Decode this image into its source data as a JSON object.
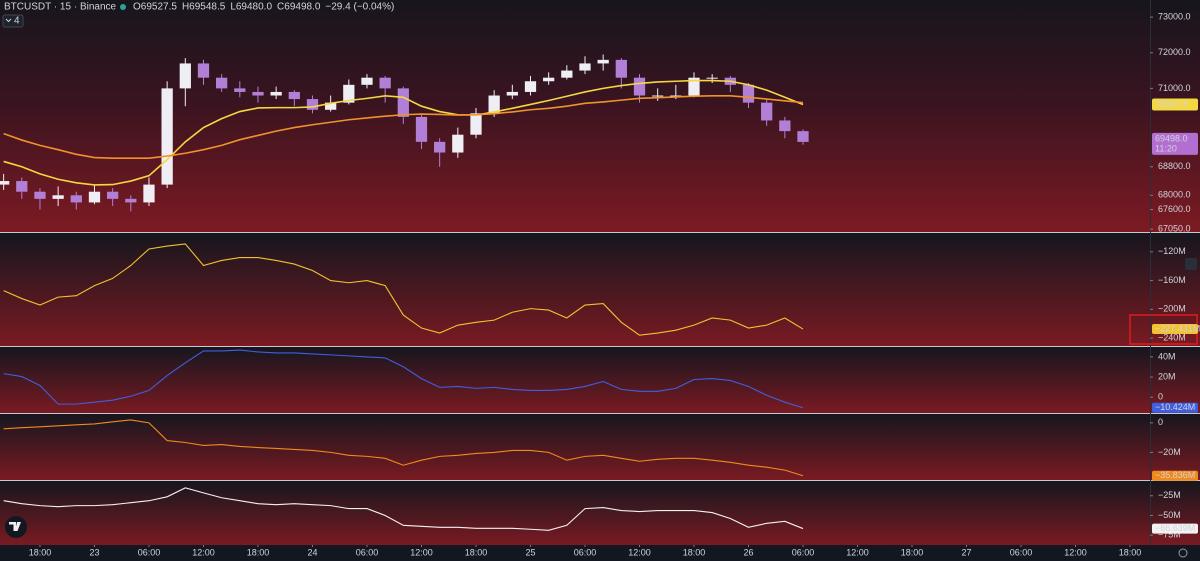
{
  "header": {
    "symbol": "BTCUSDT · 15 · Binance",
    "ohlc": [
      "O69527.5",
      "H69548.5",
      "L69480.0",
      "C69498.0",
      "−29.4 (−0.04%)"
    ],
    "indicator_count": "4"
  },
  "chart_data": [
    {
      "type": "candlestick",
      "x": [
        -4,
        -2,
        0,
        2,
        4,
        6,
        8,
        10,
        12,
        14,
        16,
        18,
        20,
        22,
        24,
        26,
        28,
        30,
        32,
        34,
        36,
        38,
        40,
        42,
        44,
        46,
        48,
        50,
        52,
        54,
        56,
        58,
        60,
        62,
        64,
        66,
        68,
        70,
        72,
        74,
        76,
        78,
        80,
        82,
        84
      ],
      "xlim": [
        -4.4,
        122.2
      ],
      "open": [
        68300,
        68400,
        68100,
        67900,
        68000,
        67800,
        68100,
        67900,
        67800,
        68300,
        71000,
        71700,
        71300,
        71000,
        70900,
        70800,
        70900,
        70700,
        70400,
        70600,
        71100,
        71300,
        71000,
        70200,
        69500,
        69200,
        69700,
        70300,
        70800,
        70900,
        71200,
        71300,
        71500,
        71700,
        71800,
        71300,
        70800,
        70800,
        70800,
        71300,
        71300,
        71100,
        70600,
        70100,
        69800
      ],
      "high": [
        68600,
        68500,
        68200,
        68250,
        68100,
        68300,
        68200,
        68000,
        68500,
        71200,
        71850,
        71800,
        71400,
        71200,
        71050,
        71050,
        70950,
        70800,
        70800,
        71250,
        71400,
        71350,
        71050,
        70300,
        69600,
        69900,
        70450,
        70950,
        71100,
        71350,
        71450,
        71650,
        71900,
        71950,
        71850,
        71400,
        71000,
        71100,
        71450,
        71400,
        71350,
        71150,
        70700,
        70200,
        69850
      ],
      "low": [
        68150,
        67900,
        67600,
        67700,
        67600,
        67750,
        67700,
        67550,
        67700,
        68200,
        70500,
        71100,
        70900,
        70750,
        70600,
        70700,
        70500,
        70300,
        70350,
        70550,
        71000,
        70600,
        70000,
        69300,
        68800,
        69050,
        69600,
        70200,
        70700,
        70800,
        71100,
        71250,
        71400,
        71500,
        71000,
        70600,
        70650,
        70700,
        70750,
        71150,
        70900,
        70450,
        69950,
        69600,
        69420
      ],
      "close": [
        68400,
        68100,
        67900,
        68000,
        67800,
        68100,
        67900,
        67800,
        68300,
        71000,
        71700,
        71300,
        71000,
        70900,
        70800,
        70900,
        70700,
        70400,
        70600,
        71100,
        71300,
        71000,
        70200,
        69500,
        69200,
        69700,
        70300,
        70800,
        70900,
        71200,
        71300,
        71500,
        71700,
        71800,
        71300,
        70800,
        70800,
        70800,
        71300,
        71300,
        71100,
        70600,
        70100,
        69800,
        69498
      ],
      "up_color": "#f0eef5",
      "down_color": "#b27fd6",
      "series": [
        {
          "color": "#f5d742",
          "show_last": true,
          "values": [
            68950,
            68800,
            68600,
            68450,
            68350,
            68290,
            68300,
            68400,
            68550,
            69000,
            69500,
            69900,
            70150,
            70350,
            70450,
            70460,
            70460,
            70480,
            70580,
            70660,
            70720,
            70790,
            70750,
            70500,
            70350,
            70260,
            70250,
            70340,
            70440,
            70550,
            70660,
            70780,
            70900,
            71000,
            71080,
            71140,
            71180,
            71200,
            71220,
            71220,
            71200,
            71100,
            70950,
            70750,
            70547.4
          ]
        },
        {
          "color": "#f0922b",
          "values": [
            69730,
            69550,
            69400,
            69280,
            69150,
            69060,
            69040,
            69040,
            69040,
            69100,
            69180,
            69280,
            69400,
            69560,
            69680,
            69800,
            69900,
            69980,
            70050,
            70120,
            70170,
            70220,
            70260,
            70280,
            70270,
            70250,
            70260,
            70290,
            70340,
            70400,
            70440,
            70500,
            70580,
            70620,
            70670,
            70720,
            70740,
            70760,
            70780,
            70790,
            70790,
            70750,
            70700,
            70650,
            70600
          ]
        }
      ],
      "last_price": {
        "value": 69498.0,
        "label": "69498.0"
      },
      "last_price_color": "#b26ed0",
      "countdown": "11:20",
      "ylim": [
        66970,
        73480
      ],
      "yticks": [
        {
          "value": 73000,
          "label": "73000.0"
        },
        {
          "value": 72000,
          "label": "72000.0"
        },
        {
          "value": 71000,
          "label": "71000.0"
        },
        {
          "value": 68800,
          "label": "68800.0"
        },
        {
          "value": 68000,
          "label": "68000.0"
        },
        {
          "value": 67600,
          "label": "67600.0"
        },
        {
          "value": 67050,
          "label": "67050.0"
        }
      ]
    },
    {
      "type": "line",
      "x": [
        -4,
        -2,
        0,
        2,
        4,
        6,
        8,
        10,
        12,
        14,
        16,
        18,
        20,
        22,
        24,
        26,
        28,
        30,
        32,
        34,
        36,
        38,
        40,
        42,
        44,
        46,
        48,
        50,
        52,
        54,
        56,
        58,
        60,
        62,
        64,
        66,
        68,
        70,
        72,
        74,
        76,
        78,
        80,
        82,
        84
      ],
      "xlim": [
        -4.4,
        122.2
      ],
      "color": "#f2c230",
      "values": [
        -174000000,
        -185000000,
        -194000000,
        -183000000,
        -181000000,
        -167000000,
        -157000000,
        -139000000,
        -116000000,
        -112000000,
        -109000000,
        -139000000,
        -132000000,
        -128000000,
        -128000000,
        -132000000,
        -137000000,
        -146000000,
        -160000000,
        -163000000,
        -160000000,
        -167000000,
        -208000000,
        -226000000,
        -233000000,
        -222000000,
        -218000000,
        -215000000,
        -204000000,
        -199000000,
        -201000000,
        -212000000,
        -194000000,
        -192000000,
        -218000000,
        -236000000,
        -233000000,
        -229000000,
        -222000000,
        -212000000,
        -215000000,
        -226000000,
        -222000000,
        -212000000,
        -227431000
      ],
      "last_value_label": "−227.431M",
      "ylim": [
        -251000000,
        -93800000
      ],
      "yticks": [
        {
          "value": -120000000,
          "label": "−120M"
        },
        {
          "value": -160000000,
          "label": "−160M"
        },
        {
          "value": -200000000,
          "label": "−200M"
        },
        {
          "value": -240000000,
          "label": "−240M"
        }
      ]
    },
    {
      "type": "line",
      "x": [
        -4,
        -2,
        0,
        2,
        4,
        6,
        8,
        10,
        12,
        14,
        16,
        18,
        20,
        22,
        24,
        26,
        28,
        30,
        32,
        34,
        36,
        38,
        40,
        42,
        44,
        46,
        48,
        50,
        52,
        54,
        56,
        58,
        60,
        62,
        64,
        66,
        68,
        70,
        72,
        74,
        76,
        78,
        80,
        82,
        84
      ],
      "xlim": [
        -4.4,
        122.2
      ],
      "color": "#3f5fe0",
      "values": [
        23400000,
        20500000,
        11700000,
        -6800000,
        -6800000,
        -4900000,
        -2900000,
        1000000,
        6800000,
        21500000,
        34100000,
        45900000,
        45900000,
        46800000,
        44900000,
        43900000,
        43900000,
        42900000,
        42000000,
        41000000,
        40000000,
        39000000,
        30200000,
        18500000,
        9800000,
        10700000,
        8800000,
        9800000,
        7800000,
        6800000,
        6800000,
        7800000,
        10700000,
        15600000,
        7800000,
        5900000,
        5900000,
        8800000,
        17600000,
        18500000,
        16600000,
        10700000,
        2000000,
        -4900000,
        -10424000
      ],
      "last_value_label": "−10.424M",
      "ylim": [
        -15600000,
        49800000
      ],
      "yticks": [
        {
          "value": 40000000,
          "label": "40M"
        },
        {
          "value": 20000000,
          "label": "20M"
        },
        0
      ]
    },
    {
      "type": "line",
      "x": [
        -4,
        -2,
        0,
        2,
        4,
        6,
        8,
        10,
        12,
        14,
        16,
        18,
        20,
        22,
        24,
        26,
        28,
        30,
        32,
        34,
        36,
        38,
        40,
        42,
        44,
        46,
        48,
        50,
        52,
        54,
        56,
        58,
        60,
        62,
        64,
        66,
        68,
        70,
        72,
        74,
        76,
        78,
        80,
        82,
        84
      ],
      "xlim": [
        -4.4,
        122.2
      ],
      "color": "#f08a1c",
      "values": [
        -4000000,
        -3300000,
        -2700000,
        -2000000,
        -1300000,
        -700000,
        700000,
        2000000,
        0,
        -12000000,
        -13300000,
        -15300000,
        -14700000,
        -16000000,
        -16700000,
        -17300000,
        -18000000,
        -18700000,
        -20000000,
        -22000000,
        -22700000,
        -24000000,
        -28700000,
        -25300000,
        -22700000,
        -22000000,
        -20700000,
        -20000000,
        -18700000,
        -18700000,
        -20000000,
        -25300000,
        -22700000,
        -22000000,
        -24000000,
        -26000000,
        -24700000,
        -24000000,
        -24000000,
        -25300000,
        -26700000,
        -28700000,
        -30000000,
        -32000000,
        -35836000
      ],
      "last_value_label": "−35.836M",
      "ylim": [
        -38700000,
        6000000
      ],
      "yticks": [
        0,
        {
          "value": -20000000,
          "label": "−20M"
        }
      ]
    },
    {
      "type": "line",
      "x": [
        -4,
        -2,
        0,
        2,
        4,
        6,
        8,
        10,
        12,
        14,
        16,
        18,
        20,
        22,
        24,
        26,
        28,
        30,
        32,
        34,
        36,
        38,
        40,
        42,
        44,
        46,
        48,
        50,
        52,
        54,
        56,
        58,
        60,
        62,
        64,
        66,
        68,
        70,
        72,
        74,
        76,
        78,
        80,
        82,
        84
      ],
      "xlim": [
        -4.4,
        122.2
      ],
      "color": "#f2f2f2",
      "values": [
        -31300000,
        -35000000,
        -37500000,
        -38800000,
        -37500000,
        -37500000,
        -36300000,
        -33800000,
        -31300000,
        -26300000,
        -15000000,
        -21300000,
        -27500000,
        -31300000,
        -35000000,
        -36300000,
        -35000000,
        -36300000,
        -37500000,
        -41300000,
        -41300000,
        -50000000,
        -62500000,
        -63800000,
        -65000000,
        -65000000,
        -66300000,
        -66300000,
        -66300000,
        -67500000,
        -68800000,
        -62500000,
        -41300000,
        -40000000,
        -43800000,
        -45000000,
        -43800000,
        -43800000,
        -43800000,
        -46300000,
        -53800000,
        -65000000,
        -60000000,
        -57500000,
        -66639000
      ],
      "last_value_label": "−66.639M",
      "ylim": [
        -87500000,
        -6250000
      ],
      "yticks": [
        {
          "value": -25000000,
          "label": "−25M"
        },
        {
          "value": -50000000,
          "label": "−50M"
        },
        {
          "value": -75000000,
          "label": "−75M"
        }
      ],
      "xticks": [
        {
          "value": 0,
          "label": "18:00"
        },
        {
          "value": 6,
          "label": "23"
        },
        {
          "value": 12,
          "label": "06:00"
        },
        {
          "value": 18,
          "label": "12:00"
        },
        {
          "value": 24,
          "label": "18:00"
        },
        {
          "value": 30,
          "label": "24"
        },
        {
          "value": 36,
          "label": "06:00"
        },
        {
          "value": 42,
          "label": "12:00"
        },
        {
          "value": 48,
          "label": "18:00"
        },
        {
          "value": 54,
          "label": "25"
        },
        {
          "value": 60,
          "label": "06:00"
        },
        {
          "value": 66,
          "label": "12:00"
        },
        {
          "value": 72,
          "label": "18:00"
        },
        {
          "value": 78,
          "label": "26"
        },
        {
          "value": 84,
          "label": "06:00"
        },
        {
          "value": 90,
          "label": "12:00"
        },
        {
          "value": 96,
          "label": "18:00"
        },
        {
          "value": 102,
          "label": "27"
        },
        {
          "value": 108,
          "label": "06:00"
        },
        {
          "value": 114,
          "label": "12:00"
        },
        {
          "value": 120,
          "label": "18:00"
        }
      ]
    }
  ]
}
